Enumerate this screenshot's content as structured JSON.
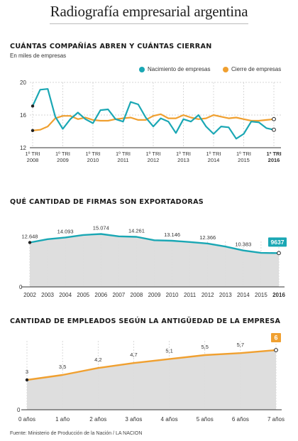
{
  "header": {
    "title": "Radiografía empresarial argentina"
  },
  "colors": {
    "teal": "#1aa7b4",
    "orange": "#f0a030",
    "gray_area": "#dcdcdc",
    "area_stroke": "#1aa7b4"
  },
  "footer": {
    "source": "Fuente: Ministerio de Producción de la Nación / LA NACION"
  },
  "chart_data": [
    {
      "type": "line",
      "title": "CUÁNTAS COMPAÑÍAS ABREN Y CUÁNTAS CIERRAN",
      "subtitle": "En miles de empresas",
      "ylim": [
        12,
        20
      ],
      "yticks": [
        12,
        16,
        20
      ],
      "grid": true,
      "legend_position": "top-right",
      "xtick_labels": [
        {
          "top": "1º TRI",
          "bottom": "2008",
          "index": 0
        },
        {
          "top": "1º TRI",
          "bottom": "2009",
          "index": 4
        },
        {
          "top": "1º TRI",
          "bottom": "2010",
          "index": 8
        },
        {
          "top": "1º TRI",
          "bottom": "2011",
          "index": 12
        },
        {
          "top": "1º TRI",
          "bottom": "2012",
          "index": 16
        },
        {
          "top": "1º TRI",
          "bottom": "2013",
          "index": 20
        },
        {
          "top": "1º TRI",
          "bottom": "2014",
          "index": 24
        },
        {
          "top": "1º TRI",
          "bottom": "2015",
          "index": 28
        },
        {
          "top": "1º TRI",
          "bottom": "2016",
          "index": 32
        }
      ],
      "series": [
        {
          "name": "Nacimiento de empresas",
          "color": "#1aa7b4",
          "values": [
            17.1,
            19.1,
            19.2,
            15.8,
            14.3,
            15.5,
            16.3,
            15.5,
            15.0,
            16.6,
            16.7,
            15.5,
            15.2,
            17.6,
            17.3,
            15.7,
            14.6,
            15.6,
            15.2,
            13.8,
            15.5,
            15.2,
            16.0,
            14.6,
            13.7,
            14.6,
            14.5,
            13.1,
            13.7,
            15.2,
            15.1,
            14.4,
            14.2
          ]
        },
        {
          "name": "Cierre de empresas",
          "color": "#f0a030",
          "values": [
            14.1,
            14.2,
            14.6,
            15.6,
            15.9,
            15.9,
            15.5,
            15.7,
            15.4,
            15.3,
            15.3,
            15.5,
            15.6,
            15.7,
            15.4,
            15.4,
            15.9,
            16.1,
            15.6,
            15.6,
            16.0,
            15.7,
            15.5,
            15.6,
            16.0,
            15.8,
            15.6,
            15.7,
            15.5,
            15.3,
            15.3,
            15.4,
            15.5
          ]
        }
      ]
    },
    {
      "type": "area",
      "title": "QUÉ CANTIDAD DE FIRMAS SON EXPORTADORAS",
      "x": [
        "2002",
        "2003",
        "2004",
        "2005",
        "2006",
        "2007",
        "2008",
        "2009",
        "2010",
        "2011",
        "2012",
        "2013",
        "2014",
        "2015",
        "2016"
      ],
      "values": [
        12648,
        13600,
        14093,
        14800,
        15074,
        14400,
        14261,
        13300,
        13146,
        12800,
        12366,
        11500,
        10383,
        9700,
        9637
      ],
      "data_labels": [
        {
          "index": 0,
          "text": "12.648"
        },
        {
          "index": 2,
          "text": "14.093"
        },
        {
          "index": 4,
          "text": "15.074"
        },
        {
          "index": 6,
          "text": "14.261"
        },
        {
          "index": 8,
          "text": "13.146"
        },
        {
          "index": 10,
          "text": "12.366"
        },
        {
          "index": 12,
          "text": "10.383"
        },
        {
          "index": 14,
          "text": "9637",
          "highlight": true
        }
      ],
      "ylim": [
        0,
        17000
      ],
      "yticks": [
        {
          "value": 0,
          "label": "0"
        }
      ],
      "grid": true
    },
    {
      "type": "area",
      "title": "CANTIDAD DE EMPLEADOS SEGÚN LA ANTIGÜEDAD DE LA EMPRESA",
      "x": [
        "0 años",
        "1 año",
        "2 años",
        "3 años",
        "4 años",
        "5 años",
        "6 años",
        "7 años"
      ],
      "values": [
        3,
        3.5,
        4.2,
        4.7,
        5.1,
        5.5,
        5.7,
        6
      ],
      "data_labels": [
        "3",
        "3,5",
        "4,2",
        "4,7",
        "5,1",
        "5,5",
        "5,7",
        "6"
      ],
      "highlight_index": 7,
      "ylim": [
        0,
        7
      ],
      "yticks": [
        {
          "value": 0,
          "label": "0"
        }
      ],
      "grid": true
    }
  ]
}
